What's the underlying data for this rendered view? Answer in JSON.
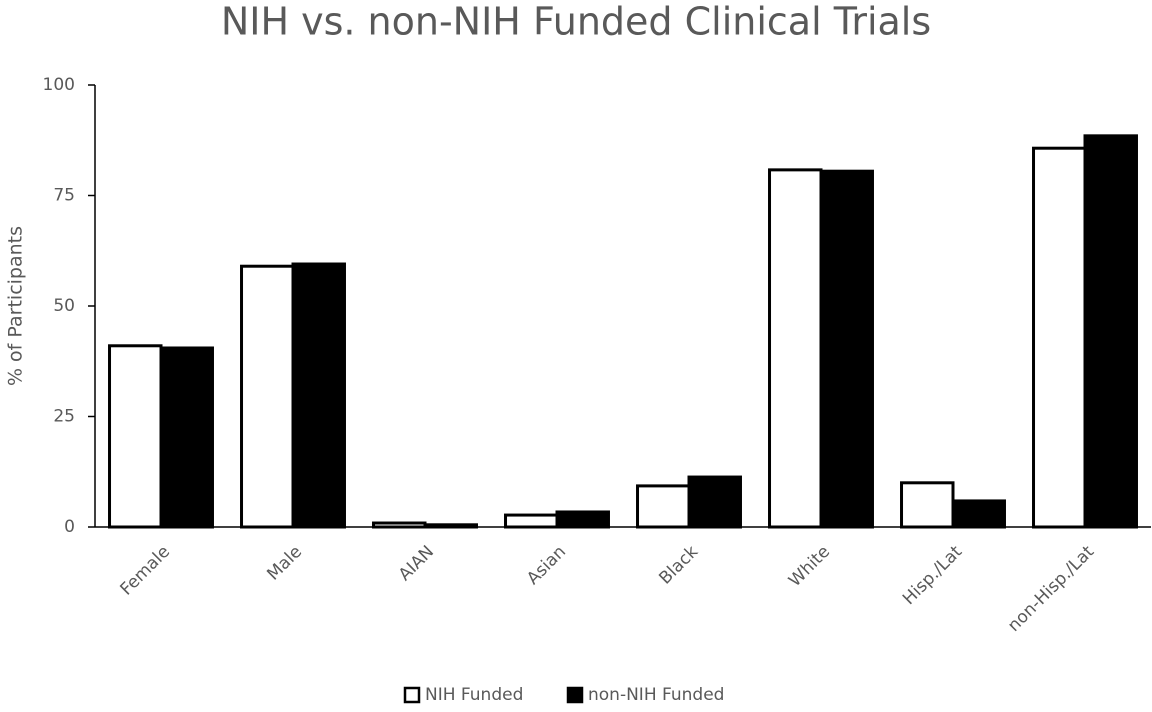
{
  "chart_data": {
    "type": "bar",
    "title": "NIH vs. non-NIH Funded Clinical Trials",
    "y_label": "% of Participants",
    "categories": [
      "Female",
      "Male",
      "AIAN",
      "Asian",
      "Black",
      "White",
      "Hisp./Lat",
      "non-Hisp./Lat"
    ],
    "series": [
      {
        "name": "NIH Funded",
        "color": "#ffffff",
        "values": [
          41,
          59,
          0.9,
          2.7,
          9.3,
          80.8,
          10,
          85.7
        ]
      },
      {
        "name": "non-NIH Funded",
        "color": "#000000",
        "values": [
          40.5,
          59.5,
          0.5,
          3.4,
          11.3,
          80.5,
          5.9,
          88.5
        ]
      }
    ],
    "ylim": [
      0,
      100
    ],
    "yticks": [
      0,
      25,
      50,
      75,
      100
    ],
    "grid": false,
    "legend": "bottom"
  }
}
